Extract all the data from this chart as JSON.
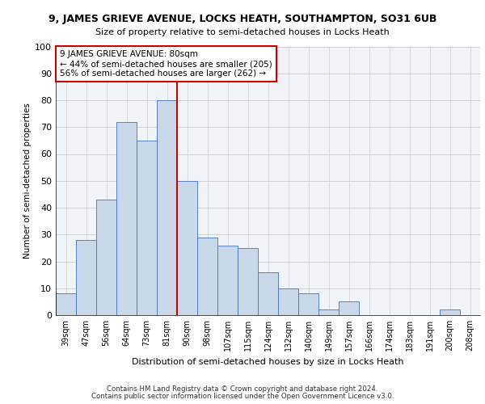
{
  "title1": "9, JAMES GRIEVE AVENUE, LOCKS HEATH, SOUTHAMPTON, SO31 6UB",
  "title2": "Size of property relative to semi-detached houses in Locks Heath",
  "xlabel": "Distribution of semi-detached houses by size in Locks Heath",
  "ylabel": "Number of semi-detached properties",
  "footer1": "Contains HM Land Registry data © Crown copyright and database right 2024.",
  "footer2": "Contains public sector information licensed under the Open Government Licence v3.0.",
  "categories": [
    "39sqm",
    "47sqm",
    "56sqm",
    "64sqm",
    "73sqm",
    "81sqm",
    "90sqm",
    "98sqm",
    "107sqm",
    "115sqm",
    "124sqm",
    "132sqm",
    "140sqm",
    "149sqm",
    "157sqm",
    "166sqm",
    "174sqm",
    "183sqm",
    "191sqm",
    "200sqm",
    "208sqm"
  ],
  "values": [
    8,
    28,
    43,
    72,
    65,
    80,
    50,
    29,
    26,
    25,
    16,
    10,
    8,
    2,
    5,
    0,
    0,
    0,
    0,
    2,
    0
  ],
  "bar_color": "#c8d8e8",
  "bar_edge_color": "#4472c4",
  "highlight_index": 5,
  "highlight_line_color": "#cc0000",
  "annotation_text": "9 JAMES GRIEVE AVENUE: 80sqm\n← 44% of semi-detached houses are smaller (205)\n56% of semi-detached houses are larger (262) →",
  "annotation_box_color": "#ffffff",
  "annotation_box_edge": "#cc0000",
  "ylim": [
    0,
    100
  ],
  "yticks": [
    0,
    10,
    20,
    30,
    40,
    50,
    60,
    70,
    80,
    90,
    100
  ],
  "grid_color": "#cccccc",
  "bg_color": "#f0f4f8"
}
